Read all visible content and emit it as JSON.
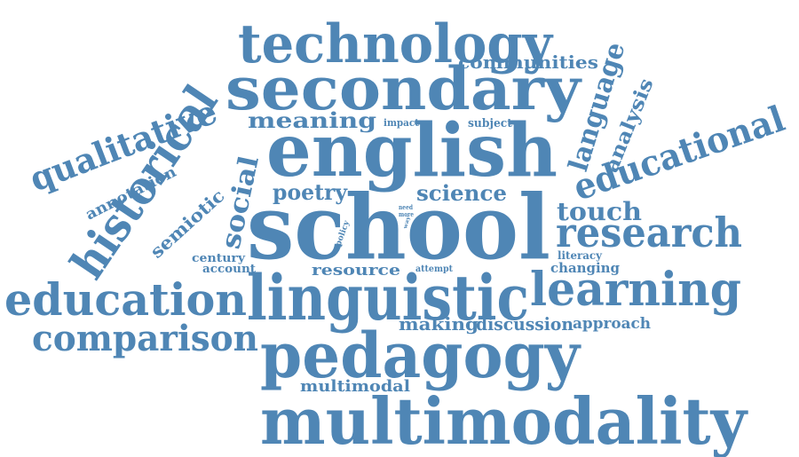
{
  "cloud": {
    "color": "#4f86b5",
    "background": "#ffffff",
    "words": {
      "technology": "technology",
      "secondary": "secondary",
      "communities": "communities",
      "language": "language",
      "analysis": "analysis",
      "qualitative": "qualitative",
      "meaning": "meaning",
      "impact": "impact",
      "subject": "subject",
      "english": "english",
      "historical": "historical",
      "educational": "educational",
      "annotation": "annotation",
      "social": "social",
      "poetry": "poetry",
      "science": "science",
      "semiotic": "semiotic",
      "need": "need",
      "more": "more",
      "way": "way",
      "policy": "policy",
      "touch": "touch",
      "school": "school",
      "research": "research",
      "century": "century",
      "account": "account",
      "resource": "resource",
      "attempt": "attempt",
      "literacy": "literacy",
      "changing": "changing",
      "education": "education",
      "linguistic": "linguistic",
      "learning": "learning",
      "comparison": "comparison",
      "making": "making",
      "discussion": "discussion",
      "approach": "approach",
      "pedagogy": "pedagogy",
      "multimodal": "multimodal",
      "multimodality": "multimodality"
    }
  }
}
